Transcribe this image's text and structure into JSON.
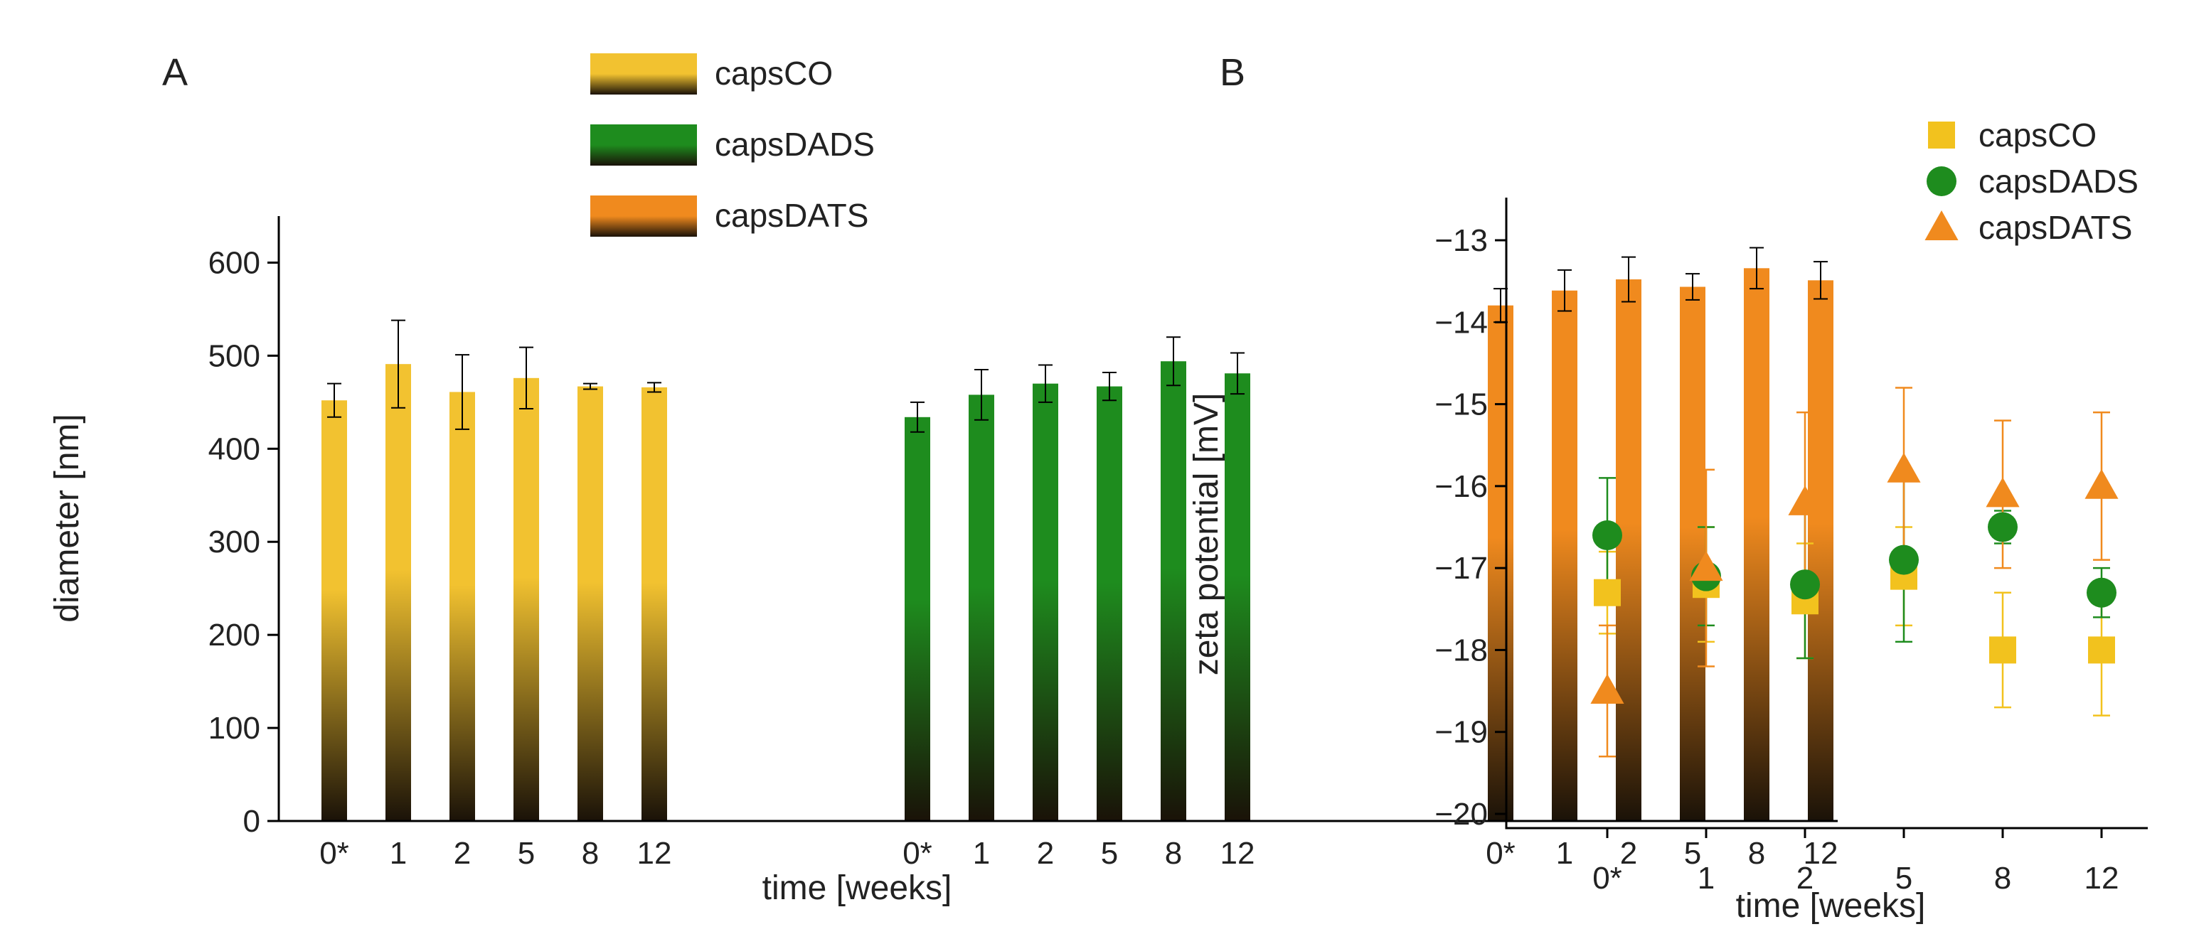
{
  "chart_data": [
    {
      "panel": "A",
      "type": "bar",
      "xlabel": "time [weeks]",
      "ylabel": "diameter [nm]",
      "ylim": [
        0,
        650
      ],
      "yticks": [
        0,
        100,
        200,
        300,
        400,
        500,
        600
      ],
      "categories": [
        "0*",
        "1",
        "2",
        "5",
        "8",
        "12"
      ],
      "grid": false,
      "legend_position": "top-center",
      "series": [
        {
          "name": "capsCO",
          "color": "#F2C230",
          "values": [
            452,
            491,
            461,
            476,
            467,
            466
          ],
          "errors": [
            18,
            47,
            40,
            33,
            3,
            5
          ]
        },
        {
          "name": "capsDADS",
          "color": "#1E8C1E",
          "values": [
            434,
            458,
            470,
            467,
            494,
            481
          ],
          "errors": [
            16,
            27,
            20,
            15,
            26,
            22
          ]
        },
        {
          "name": "capsDATS",
          "color": "#F08A1E",
          "values": [
            554,
            570,
            582,
            574,
            594,
            581
          ],
          "errors": [
            18,
            22,
            24,
            14,
            22,
            20
          ]
        }
      ]
    },
    {
      "panel": "B",
      "type": "scatter",
      "xlabel": "time [weeks]",
      "ylabel": "zeta potential [mV]",
      "ylim": [
        -20,
        -13
      ],
      "yticks": [
        "−20",
        "−19",
        "−18",
        "−17",
        "−16",
        "−15",
        "−14",
        "−13"
      ],
      "categories": [
        "0*",
        "1",
        "2",
        "5",
        "8",
        "12"
      ],
      "grid": false,
      "legend_position": "top-right",
      "series": [
        {
          "name": "capsCO",
          "marker": "square",
          "color": "#F2C21E",
          "values": [
            -17.3,
            -17.2,
            -17.4,
            -17.1,
            -18.0,
            -18.0
          ],
          "errors": [
            0.5,
            0.7,
            0.7,
            0.6,
            0.7,
            0.8
          ]
        },
        {
          "name": "capsDADS",
          "marker": "circle",
          "color": "#1E8C1E",
          "values": [
            -16.6,
            -17.1,
            -17.2,
            -16.9,
            -16.5,
            -17.3
          ],
          "errors": [
            0.7,
            0.6,
            0.9,
            1.0,
            0.2,
            0.3
          ]
        },
        {
          "name": "capsDATS",
          "marker": "triangle",
          "color": "#F08A1E",
          "values": [
            -18.5,
            -17.0,
            -16.2,
            -15.8,
            -16.1,
            -16.0
          ],
          "errors": [
            0.8,
            1.2,
            1.1,
            1.0,
            0.9,
            0.9
          ]
        }
      ]
    }
  ]
}
